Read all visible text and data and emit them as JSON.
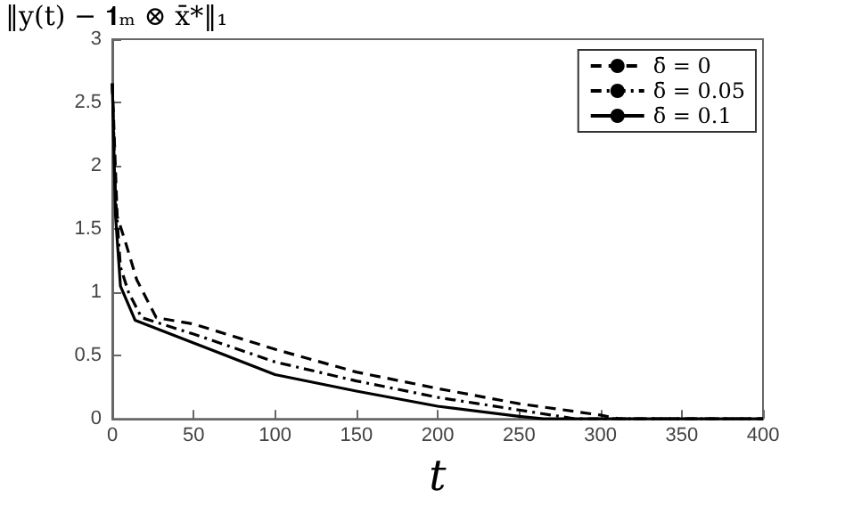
{
  "chart_data": {
    "type": "line",
    "ylabel": "‖y(t) − 𝟏ₘ ⊗ x̄*‖₁",
    "xlabel": "t",
    "xlim": [
      0,
      400
    ],
    "xticks": [
      0,
      50,
      100,
      150,
      200,
      250,
      300,
      350,
      400
    ],
    "ylim": [
      0,
      3
    ],
    "yticks": [
      0,
      0.5,
      1,
      1.5,
      2,
      2.5,
      3
    ],
    "legend": "top right",
    "grid": false,
    "marker": "none",
    "series": [
      {
        "name": "δ̄ = 0",
        "color": "#000000",
        "line_style": "dashed",
        "x": [
          0,
          3,
          8,
          15,
          27,
          50,
          100,
          150,
          200,
          250,
          300,
          312,
          400
        ],
        "values": [
          2.65,
          1.6,
          1.4,
          1.1,
          0.8,
          0.75,
          0.55,
          0.37,
          0.24,
          0.12,
          0.03,
          0,
          0
        ]
      },
      {
        "name": "δ̄ = 0.05",
        "color": "#000000",
        "line_style": "dashdot",
        "x": [
          0,
          2,
          5,
          10,
          18,
          50,
          100,
          150,
          200,
          250,
          285,
          400
        ],
        "values": [
          2.65,
          1.75,
          1.2,
          1.0,
          0.8,
          0.67,
          0.45,
          0.3,
          0.17,
          0.07,
          0,
          0
        ]
      },
      {
        "name": "δ̄ = 0.1",
        "color": "#000000",
        "line_style": "solid",
        "x": [
          0,
          2,
          5,
          10,
          14,
          50,
          100,
          150,
          200,
          250,
          265,
          400
        ],
        "values": [
          2.65,
          1.6,
          1.05,
          0.9,
          0.78,
          0.6,
          0.35,
          0.22,
          0.1,
          0.02,
          0,
          0
        ]
      }
    ]
  }
}
